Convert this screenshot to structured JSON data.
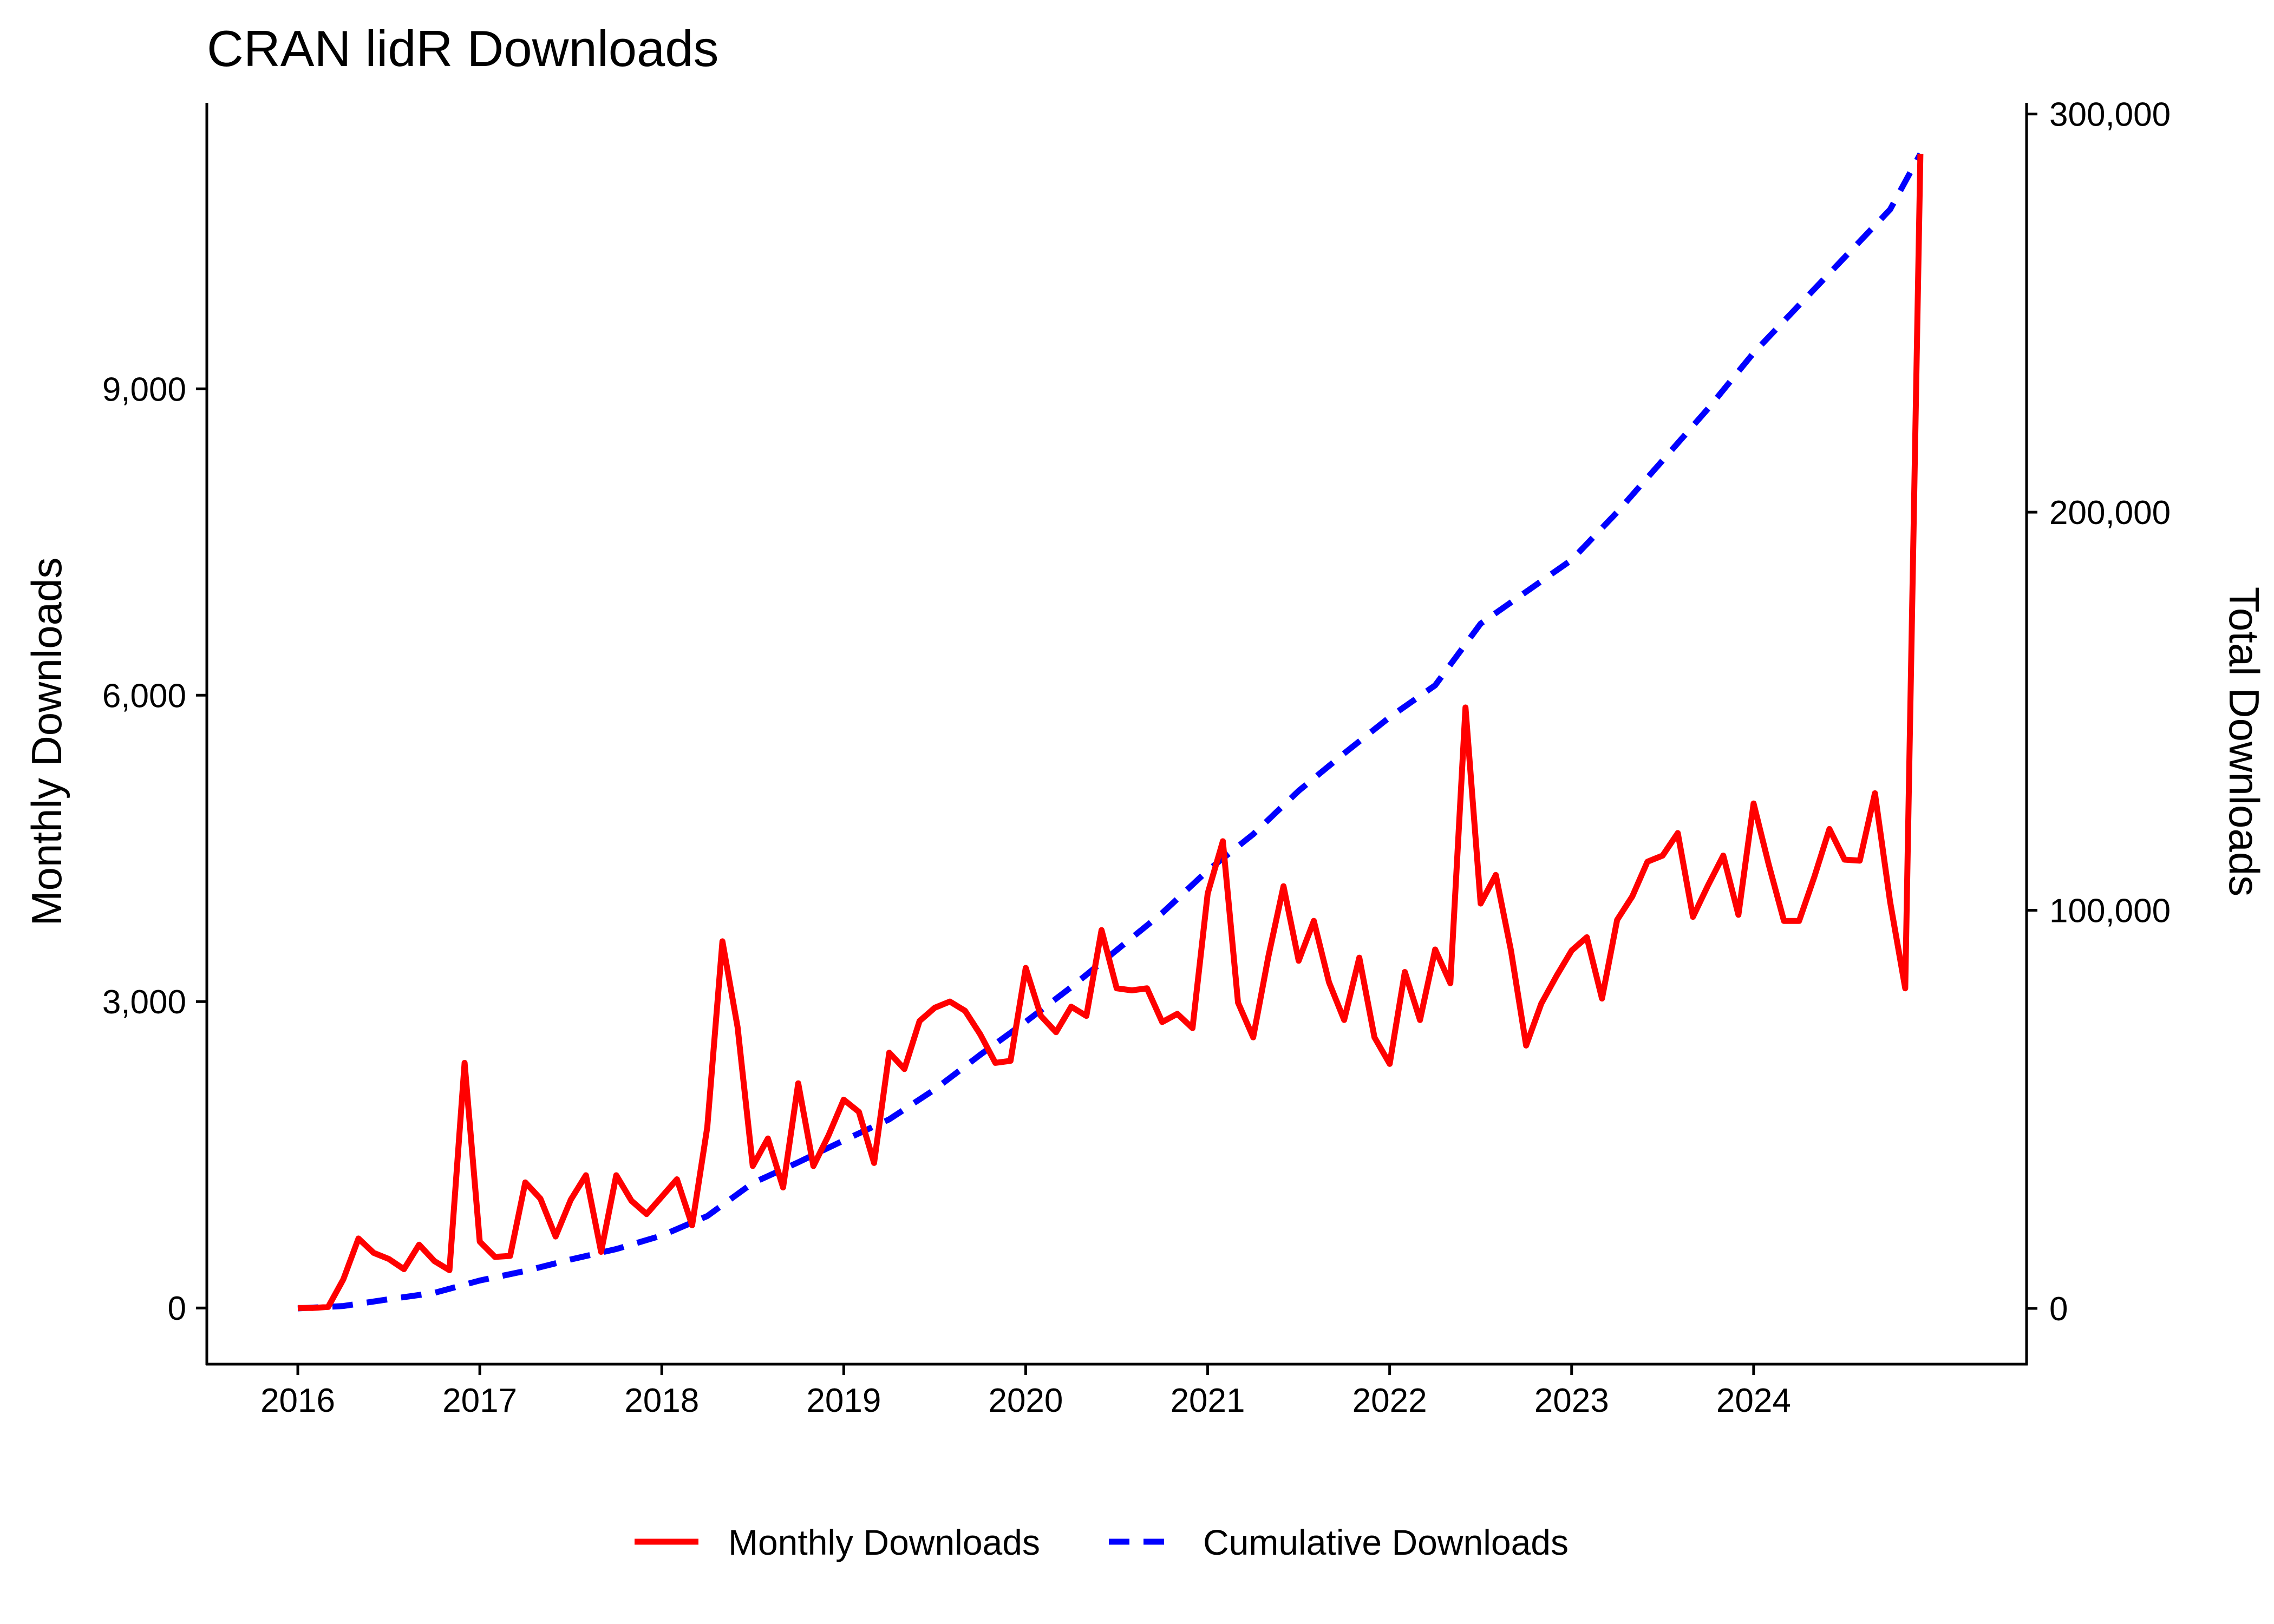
{
  "chart_data": {
    "type": "line",
    "title": "CRAN lidR Downloads",
    "xlabel": "",
    "ylabel": "Monthly Downloads",
    "y2label": "Total Downloads",
    "x_ticks": [
      "2016",
      "2017",
      "2018",
      "2019",
      "2020",
      "2021",
      "2022",
      "2023",
      "2024"
    ],
    "y_ticks": [
      "0",
      "3,000",
      "6,000",
      "9,000"
    ],
    "y2_ticks": [
      "0",
      "100,000",
      "200,000",
      "300,000"
    ],
    "ylim": [
      -550,
      11800
    ],
    "y2lim": [
      -14000,
      302800
    ],
    "xlim": [
      "2015-07",
      "2025-07"
    ],
    "grid": false,
    "legend_position": "bottom",
    "colors": {
      "monthly": "#ff0000",
      "cumulative": "#0000ff"
    },
    "series": [
      {
        "name": "Monthly Downloads",
        "axis": "left",
        "style": "solid",
        "x": [
          "2016-01",
          "2016-02",
          "2016-03",
          "2016-04",
          "2016-05",
          "2016-06",
          "2016-07",
          "2016-08",
          "2016-09",
          "2016-10",
          "2016-11",
          "2016-12",
          "2017-01",
          "2017-02",
          "2017-03",
          "2017-04",
          "2017-05",
          "2017-06",
          "2017-07",
          "2017-08",
          "2017-09",
          "2017-10",
          "2017-11",
          "2017-12",
          "2018-01",
          "2018-02",
          "2018-03",
          "2018-04",
          "2018-05",
          "2018-06",
          "2018-07",
          "2018-08",
          "2018-09",
          "2018-10",
          "2018-11",
          "2018-12",
          "2019-01",
          "2019-02",
          "2019-03",
          "2019-04",
          "2019-05",
          "2019-06",
          "2019-07",
          "2019-08",
          "2019-09",
          "2019-10",
          "2019-11",
          "2019-12",
          "2020-01",
          "2020-02",
          "2020-03",
          "2020-04",
          "2020-05",
          "2020-06",
          "2020-07",
          "2020-08",
          "2020-09",
          "2020-10",
          "2020-11",
          "2020-12",
          "2021-01",
          "2021-02",
          "2021-03",
          "2021-04",
          "2021-05",
          "2021-06",
          "2021-07",
          "2021-08",
          "2021-09",
          "2021-10",
          "2021-11",
          "2021-12",
          "2022-01",
          "2022-02",
          "2022-03",
          "2022-04",
          "2022-05",
          "2022-06",
          "2022-07",
          "2022-08",
          "2022-09",
          "2022-10",
          "2022-11",
          "2022-12",
          "2023-01",
          "2023-02",
          "2023-03",
          "2023-04",
          "2023-05",
          "2023-06",
          "2023-07",
          "2023-08",
          "2023-09",
          "2023-10",
          "2023-11",
          "2023-12",
          "2024-01",
          "2024-02",
          "2024-03",
          "2024-04",
          "2024-05",
          "2024-06",
          "2024-07",
          "2024-08",
          "2024-09",
          "2024-10",
          "2024-11",
          "2024-12"
        ],
        "values": [
          0,
          0,
          10,
          280,
          680,
          540,
          480,
          380,
          620,
          460,
          370,
          2400,
          650,
          500,
          510,
          1230,
          1070,
          700,
          1060,
          1300,
          550,
          1300,
          1050,
          920,
          1090,
          1260,
          810,
          1770,
          3590,
          2750,
          1390,
          1660,
          1180,
          2200,
          1390,
          1690,
          2040,
          1920,
          1420,
          2500,
          2340,
          2810,
          2940,
          3000,
          2910,
          2680,
          2400,
          2420,
          3330,
          2860,
          2700,
          2950,
          2860,
          3700,
          3130,
          3110,
          3130,
          2800,
          2880,
          2740,
          4060,
          4570,
          2990,
          2650,
          3440,
          4130,
          3400,
          3790,
          3190,
          2820,
          3430,
          2650,
          2390,
          3290,
          2820,
          3510,
          3180,
          5880,
          3960,
          4240,
          3500,
          2570,
          2980,
          3250,
          3500,
          3630,
          3030,
          3800,
          4030,
          4370,
          4430,
          4650,
          3830,
          4140,
          4430,
          3850,
          4940,
          4340,
          3790,
          3790,
          4220,
          4690,
          4390,
          4380,
          5040,
          3980,
          3130,
          11300
        ]
      },
      {
        "name": "Cumulative Downloads",
        "axis": "right",
        "style": "dashed",
        "x": [
          "2016-01",
          "2016-04",
          "2016-07",
          "2016-10",
          "2017-01",
          "2017-04",
          "2017-07",
          "2017-10",
          "2018-01",
          "2018-04",
          "2018-07",
          "2018-10",
          "2019-01",
          "2019-04",
          "2019-07",
          "2019-10",
          "2020-01",
          "2020-04",
          "2020-07",
          "2020-10",
          "2021-01",
          "2021-04",
          "2021-07",
          "2021-10",
          "2022-01",
          "2022-04",
          "2022-07",
          "2022-10",
          "2023-01",
          "2023-04",
          "2023-07",
          "2023-10",
          "2024-01",
          "2024-04",
          "2024-07",
          "2024-10",
          "2024-12"
        ],
        "values": [
          0,
          600,
          2300,
          3900,
          7000,
          9400,
          12300,
          14900,
          18300,
          23200,
          31500,
          36700,
          42200,
          47500,
          55000,
          63700,
          72000,
          80700,
          90000,
          99300,
          110000,
          119100,
          130000,
          139400,
          148500,
          156500,
          172000,
          180000,
          188000,
          200000,
          213000,
          226000,
          240000,
          252000,
          264000,
          276000,
          290000
        ]
      }
    ]
  }
}
